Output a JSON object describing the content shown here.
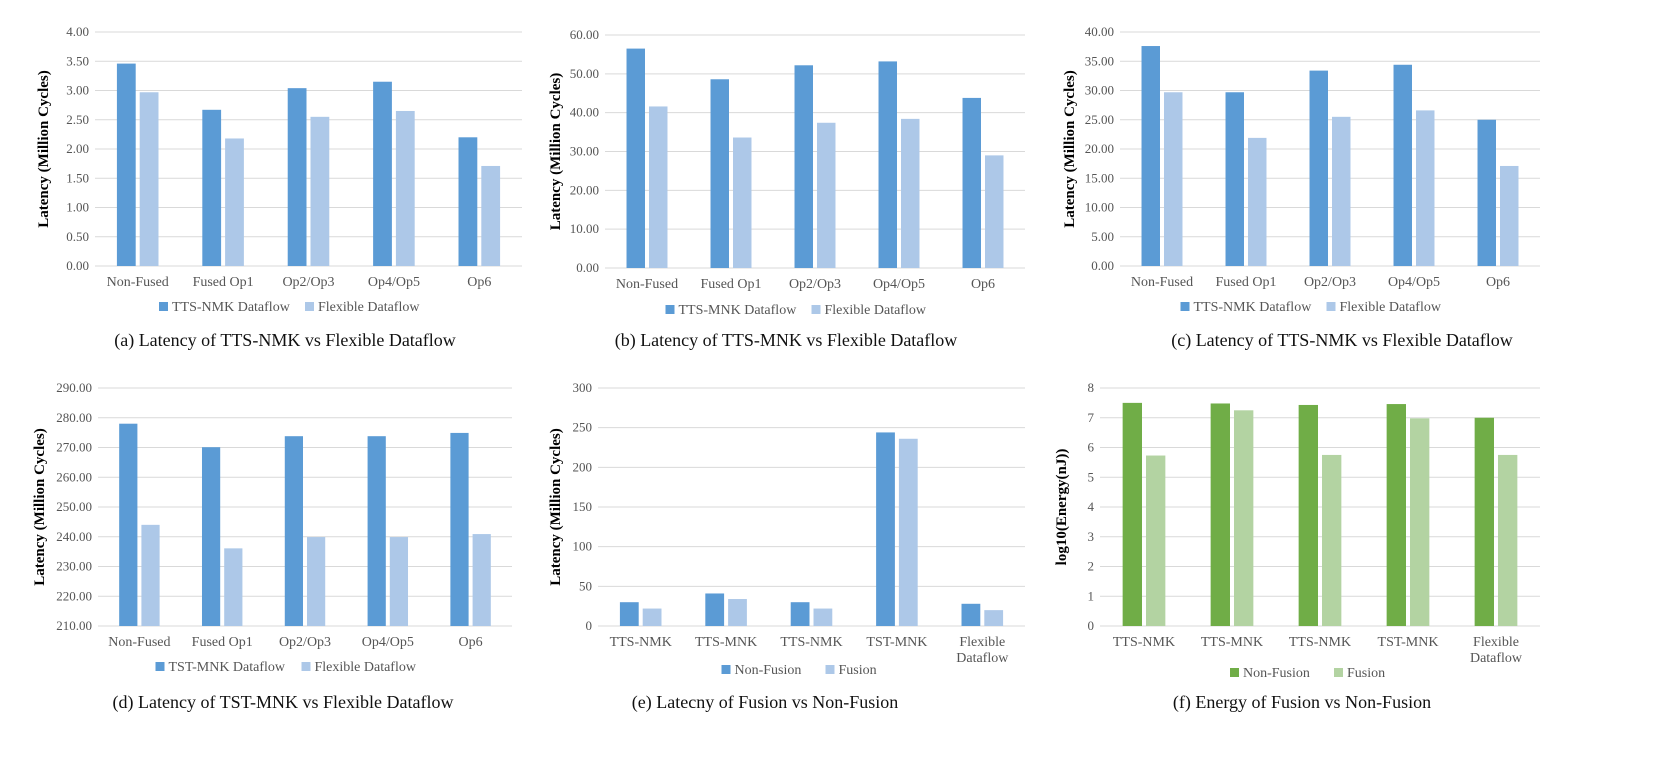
{
  "colors": {
    "blue_dark": "#5b9bd5",
    "blue_light": "#adc8e8",
    "green_dark": "#70ad47",
    "green_light": "#b3d3a2",
    "grid": "#d9d9d9"
  },
  "chart_data": [
    {
      "type": "bar",
      "caption": "(a) Latency of TTS-NMK vs Flexible Dataflow",
      "ylabel": "Latency (Million Cycles)",
      "xlabel": "",
      "categories": [
        "Non-Fused",
        "Fused Op1",
        "Op2/Op3",
        "Op4/Op5",
        "Op6"
      ],
      "series": [
        {
          "name": "TTS-NMK Dataflow",
          "color": "#5b9bd5",
          "values": [
            3.46,
            2.67,
            3.04,
            3.15,
            2.2
          ]
        },
        {
          "name": "Flexible Dataflow",
          "color": "#adc8e8",
          "values": [
            2.97,
            2.18,
            2.55,
            2.65,
            1.71
          ]
        }
      ],
      "ylim": [
        0,
        4
      ],
      "yticks": [
        "0.00",
        "0.50",
        "1.00",
        "1.50",
        "2.00",
        "2.50",
        "3.00",
        "3.50",
        "4.00"
      ],
      "grid": true,
      "legend": "bottom"
    },
    {
      "type": "bar",
      "caption": "(b) Latency of TTS-MNK vs Flexible Dataflow",
      "ylabel": "Latency (Million Cycles)",
      "xlabel": "",
      "categories": [
        "Non-Fused",
        "Fused Op1",
        "Op2/Op3",
        "Op4/Op5",
        "Op6"
      ],
      "series": [
        {
          "name": "TTS-MNK Dataflow",
          "color": "#5b9bd5",
          "values": [
            56.5,
            48.6,
            52.2,
            53.2,
            43.8
          ]
        },
        {
          "name": "Flexible Dataflow",
          "color": "#adc8e8",
          "values": [
            41.6,
            33.6,
            37.4,
            38.4,
            29.0
          ]
        }
      ],
      "ylim": [
        0,
        60
      ],
      "yticks": [
        "0.00",
        "10.00",
        "20.00",
        "30.00",
        "40.00",
        "50.00",
        "60.00"
      ],
      "grid": true,
      "legend": "bottom"
    },
    {
      "type": "bar",
      "caption": "(c) Latency of TTS-NMK vs Flexible Dataflow",
      "ylabel": "Latency (Million Cycles)",
      "xlabel": "",
      "categories": [
        "Non-Fused",
        "Fused Op1",
        "Op2/Op3",
        "Op4/Op5",
        "Op6"
      ],
      "series": [
        {
          "name": "TTS-NMK Dataflow",
          "color": "#5b9bd5",
          "values": [
            37.6,
            29.7,
            33.4,
            34.4,
            25.0
          ]
        },
        {
          "name": "Flexible Dataflow",
          "color": "#adc8e8",
          "values": [
            29.7,
            21.9,
            25.5,
            26.6,
            17.1
          ]
        }
      ],
      "ylim": [
        0,
        40
      ],
      "yticks": [
        "0.00",
        "5.00",
        "10.00",
        "15.00",
        "20.00",
        "25.00",
        "30.00",
        "35.00",
        "40.00"
      ],
      "grid": true,
      "legend": "bottom"
    },
    {
      "type": "bar",
      "caption": "(d) Latency of TST-MNK vs Flexible Dataflow",
      "ylabel": "Latency (Million Cycles)",
      "xlabel": "",
      "categories": [
        "Non-Fused",
        "Fused Op1",
        "Op2/Op3",
        "Op4/Op5",
        "Op6"
      ],
      "series": [
        {
          "name": "TST-MNK Dataflow",
          "color": "#5b9bd5",
          "values": [
            278.0,
            270.1,
            273.8,
            273.8,
            274.9
          ]
        },
        {
          "name": "Flexible Dataflow",
          "color": "#adc8e8",
          "values": [
            244.0,
            236.1,
            239.9,
            239.9,
            240.9
          ]
        }
      ],
      "ylim": [
        210,
        290
      ],
      "yticks": [
        "210.00",
        "220.00",
        "230.00",
        "240.00",
        "250.00",
        "260.00",
        "270.00",
        "280.00",
        "290.00"
      ],
      "grid": true,
      "legend": "bottom"
    },
    {
      "type": "bar",
      "caption": "(e) Latecny of Fusion vs Non-Fusion",
      "ylabel": "Latency (Million Cycles)",
      "xlabel": "",
      "categories": [
        "TTS-NMK",
        "TTS-MNK",
        "TTS-NMK",
        "TST-MNK",
        "Flexible Dataflow"
      ],
      "series": [
        {
          "name": "Non-Fusion",
          "color": "#5b9bd5",
          "values": [
            30,
            41,
            30,
            244,
            28
          ]
        },
        {
          "name": "Fusion",
          "color": "#adc8e8",
          "values": [
            22,
            34,
            22,
            236,
            20
          ]
        }
      ],
      "ylim": [
        0,
        300
      ],
      "yticks": [
        "0",
        "50",
        "100",
        "150",
        "200",
        "250",
        "300"
      ],
      "grid": true,
      "legend": "bottom"
    },
    {
      "type": "bar",
      "caption": "(f) Energy of Fusion vs Non-Fusion",
      "ylabel": "log10(Energy(nJ))",
      "xlabel": "",
      "categories": [
        "TTS-NMK",
        "TTS-MNK",
        "TTS-NMK",
        "TST-MNK",
        "Flexible Dataflow"
      ],
      "series": [
        {
          "name": "Non-Fusion",
          "color": "#70ad47",
          "values": [
            7.5,
            7.48,
            7.43,
            7.46,
            7.0
          ]
        },
        {
          "name": "Fusion",
          "color": "#b3d3a2",
          "values": [
            5.73,
            7.25,
            5.75,
            6.98,
            5.75
          ]
        }
      ],
      "ylim": [
        0,
        8
      ],
      "yticks": [
        "0",
        "1",
        "2",
        "3",
        "4",
        "5",
        "6",
        "7",
        "8"
      ],
      "grid": true,
      "legend": "bottom"
    }
  ]
}
